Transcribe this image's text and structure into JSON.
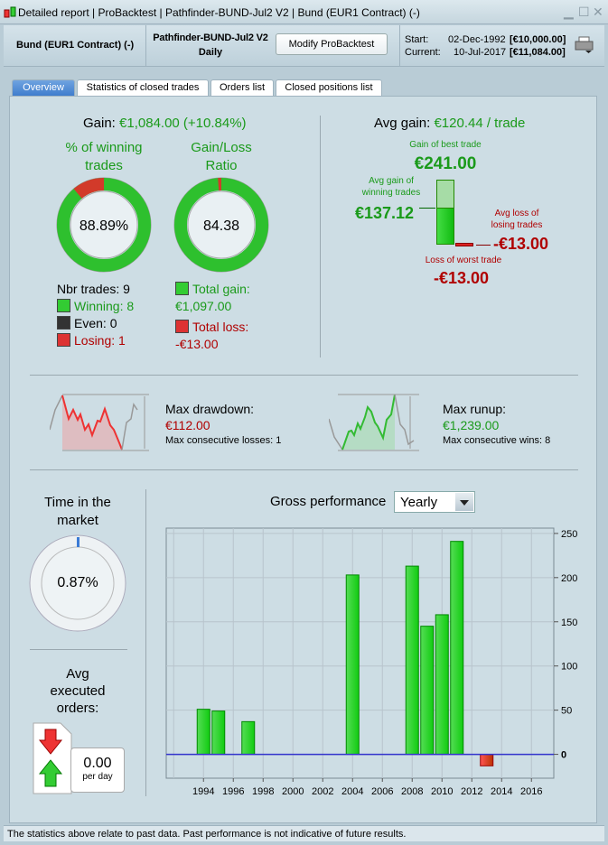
{
  "titlebar": {
    "title": "Detailed report | ProBacktest | Pathfinder-BUND-Jul2 V2 | Bund (EUR1 Contract) (-)"
  },
  "header": {
    "instrument": "Bund (EUR1 Contract) (-)",
    "system": "Pathfinder-BUND-Jul2 V2",
    "timeframe": "Daily",
    "modify_label": "Modify ProBacktest",
    "start_label": "Start:",
    "start_date": "02-Dec-1992",
    "start_capital": "[€10,000.00]",
    "current_label": "Current:",
    "current_date": "10-Jul-2017",
    "current_capital": "[€11,084.00]"
  },
  "tabs": [
    {
      "label": "Overview"
    },
    {
      "label": "Statistics of closed trades"
    },
    {
      "label": "Orders list"
    },
    {
      "label": "Closed positions list"
    }
  ],
  "gain": {
    "label": "Gain:",
    "value": "€1,084.00 (+10.84%)"
  },
  "winning": {
    "title1": "% of winning",
    "title2": "trades",
    "percent": "88.89%",
    "percent_value": 88.89,
    "nbr_trades": "Nbr trades: 9",
    "winning": "Winning: 8",
    "even": "Even: 0",
    "losing": "Losing: 1"
  },
  "ratio": {
    "title1": "Gain/Loss",
    "title2": "Ratio",
    "value": "84.38",
    "loss_fraction": 0.0117,
    "total_gain_label": "Total gain:",
    "total_gain": "€1,097.00",
    "total_loss_label": "Total loss:",
    "total_loss": "-€13.00"
  },
  "avg": {
    "label": "Avg gain:",
    "value": "€120.44 / trade",
    "best_label": "Gain of best trade",
    "best": "€241.00",
    "avg_win_label1": "Avg gain of",
    "avg_win_label2": "winning trades",
    "avg_win": "€137.12",
    "avg_loss_label1": "Avg loss of",
    "avg_loss_label2": "losing trades",
    "avg_loss": "-€13.00",
    "worst_label": "Loss of worst trade",
    "worst": "-€13.00"
  },
  "drawdown": {
    "label": "Max drawdown:",
    "value": "€112.00",
    "sub": "Max consecutive losses: 1"
  },
  "runup": {
    "label": "Max runup:",
    "value": "€1,239.00",
    "sub": "Max consecutive wins: 8"
  },
  "time_market": {
    "title1": "Time in the",
    "title2": "market",
    "value": "0.87%"
  },
  "avg_orders": {
    "title1": "Avg",
    "title2": "executed",
    "title3": "orders:",
    "value": "0.00",
    "unit": "per day"
  },
  "perf": {
    "label": "Gross performance",
    "period": "Yearly"
  },
  "chart_data": {
    "type": "bar",
    "title": "Gross performance",
    "x": [
      1994,
      1995,
      1997,
      2004,
      2008,
      2009,
      2010,
      2011,
      2013
    ],
    "values": [
      51,
      49,
      37,
      203,
      213,
      145,
      158,
      241,
      -13
    ],
    "xlim": [
      1991.5,
      2017.5
    ],
    "ylim": [
      -27,
      256
    ],
    "xticks": [
      "1994",
      "1996",
      "1998",
      "2000",
      "2002",
      "2004",
      "2006",
      "2008",
      "2010",
      "2012",
      "2014",
      "2016"
    ],
    "yticks": [
      "0",
      "50",
      "100",
      "150",
      "200",
      "250"
    ],
    "grid": true,
    "positive_color": "#22cc22",
    "negative_color": "#cc2222"
  },
  "footer": {
    "text": "The statistics above relate to past data. Past performance is not indicative of future results."
  }
}
